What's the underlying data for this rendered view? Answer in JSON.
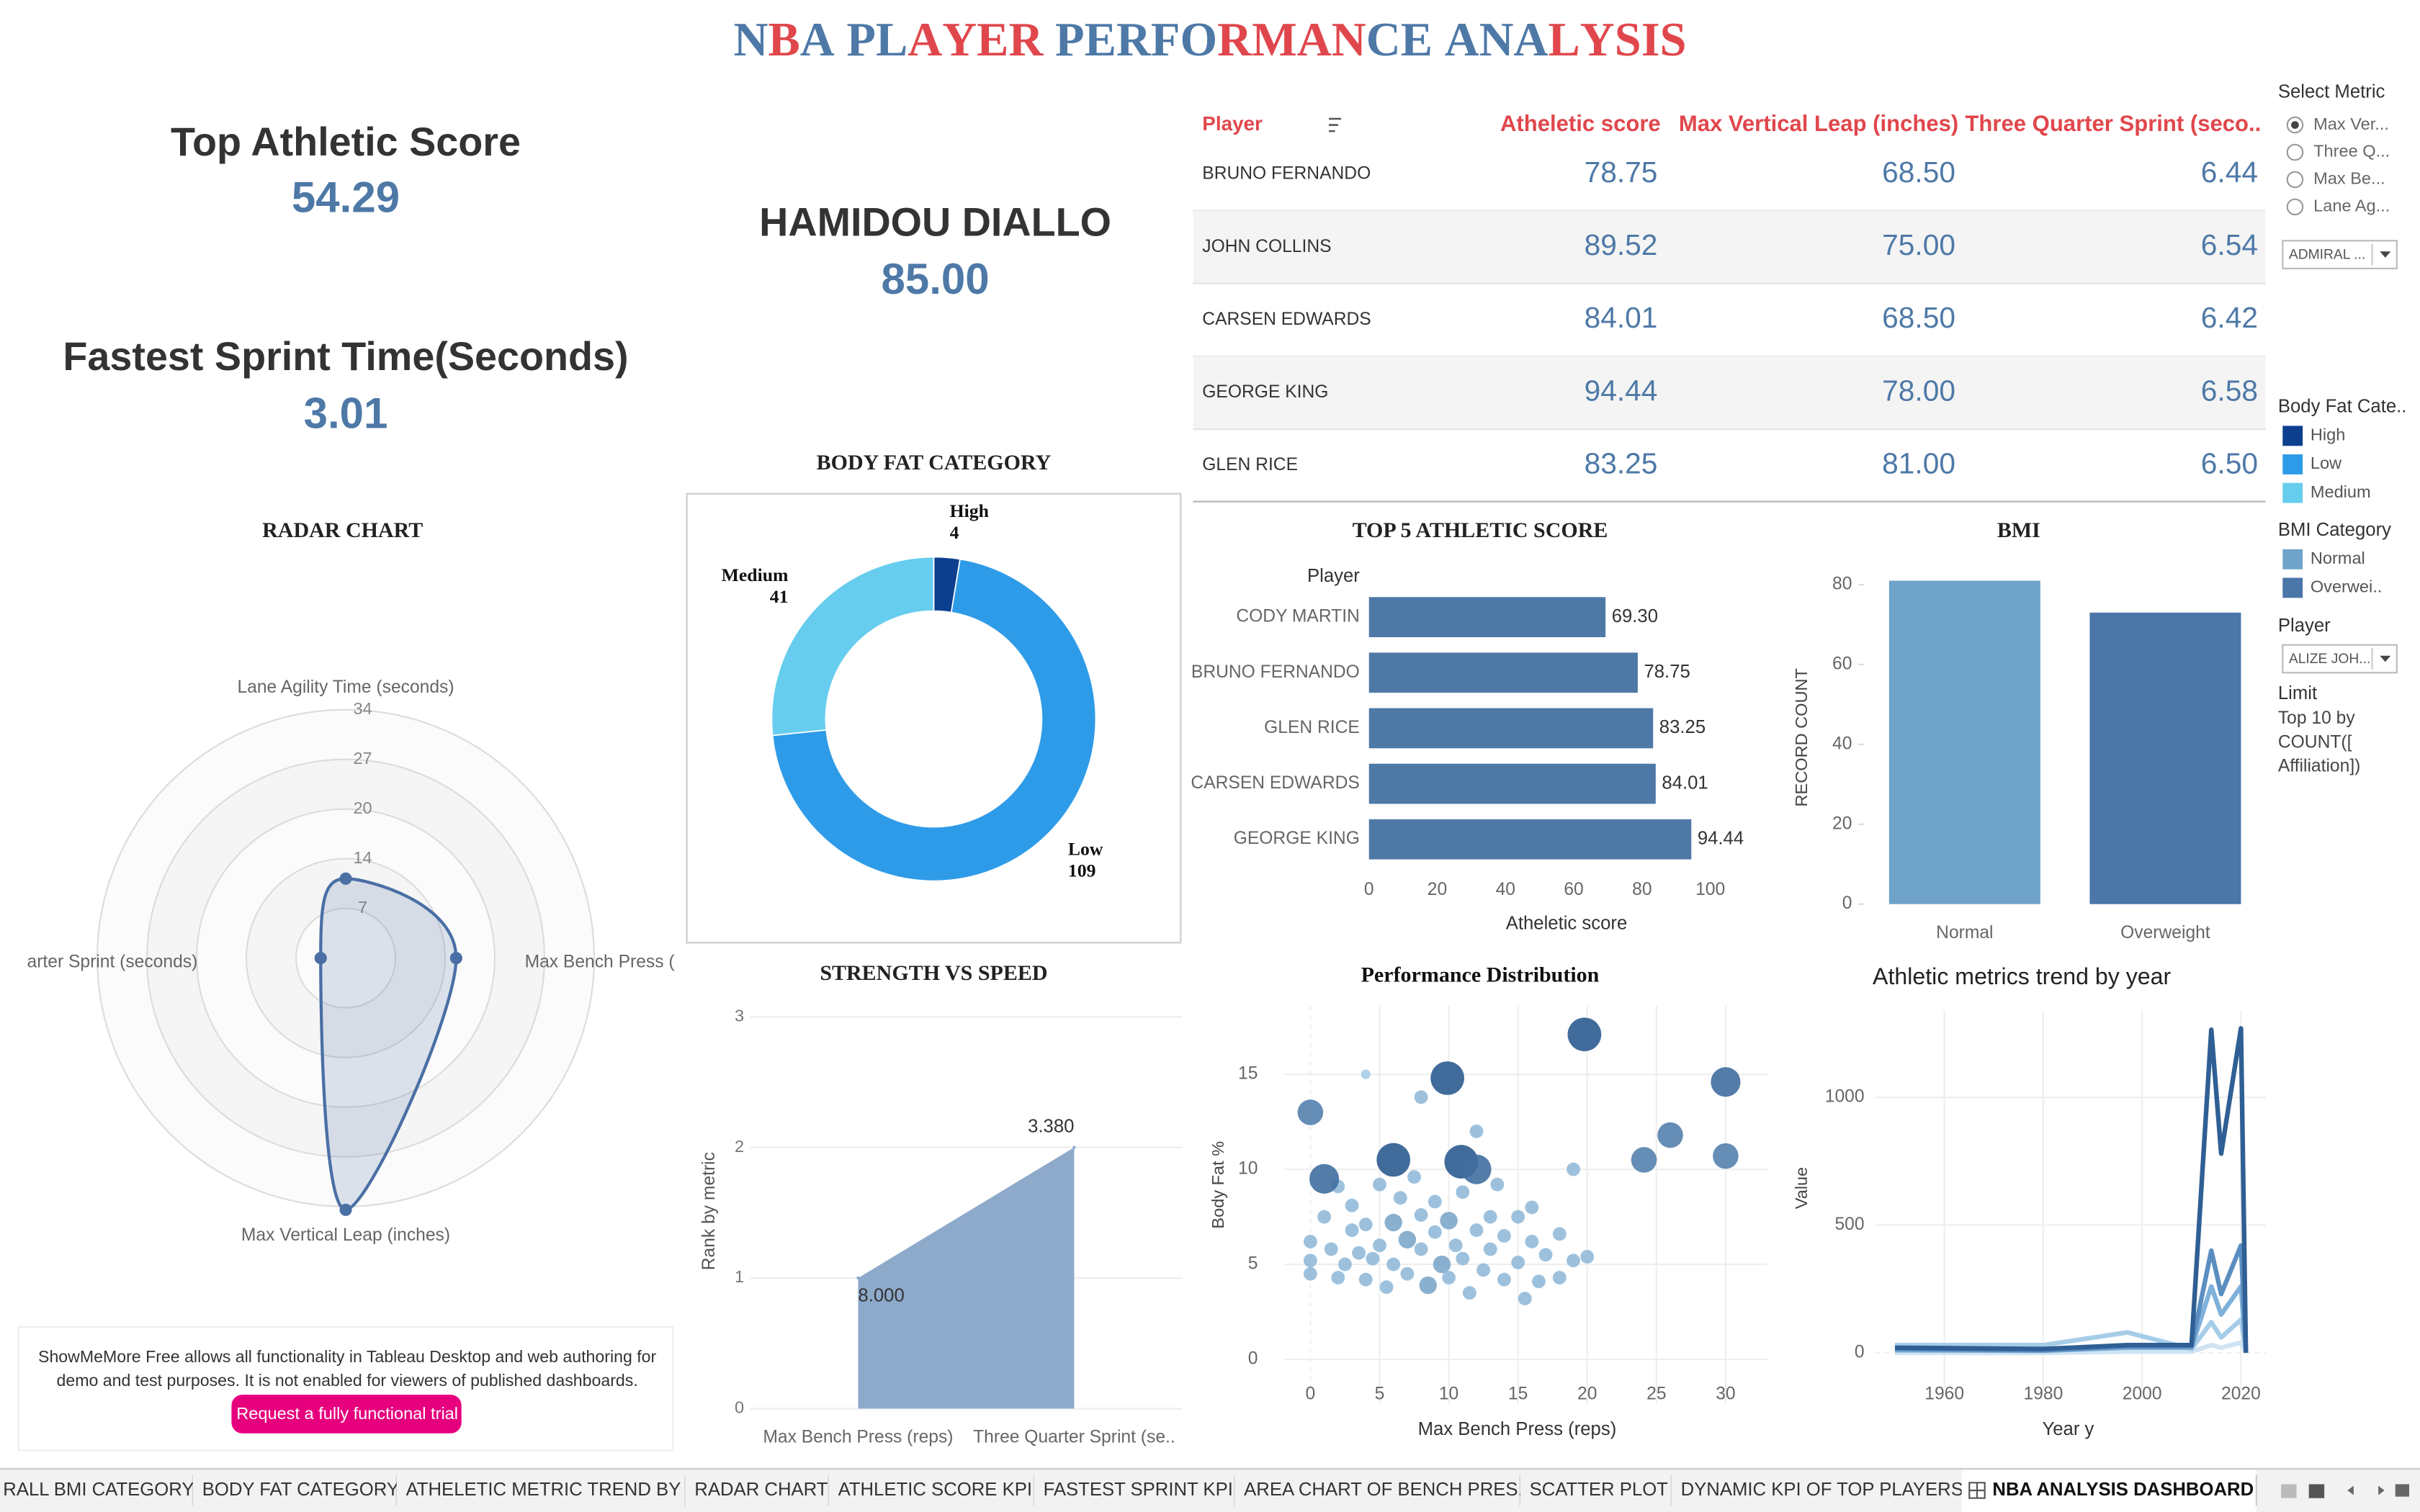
{
  "header": {
    "title": "NBA PLAYER PERFORMANCE ANALYSIS"
  },
  "kpis": [
    {
      "label": "Top Athletic Score",
      "value": "54.29"
    },
    {
      "label": "Fastest Sprint Time(Seconds)",
      "value": "3.01"
    },
    {
      "label": "HAMIDOU DIALLO",
      "value": "85.00"
    }
  ],
  "table": {
    "columns": [
      "Player",
      "Atheletic score",
      "Max Vertical Leap (inches)",
      "Three Quarter Sprint (seco.."
    ],
    "rows": [
      [
        "BRUNO FERNANDO",
        "78.75",
        "68.50",
        "6.44"
      ],
      [
        "JOHN COLLINS",
        "89.52",
        "75.00",
        "6.54"
      ],
      [
        "CARSEN EDWARDS",
        "84.01",
        "68.50",
        "6.42"
      ],
      [
        "GEORGE KING",
        "94.44",
        "78.00",
        "6.58"
      ],
      [
        "GLEN RICE",
        "83.25",
        "81.00",
        "6.50"
      ]
    ]
  },
  "filters": {
    "select_metric": {
      "label": "Select Metric",
      "options": [
        "Max Ver...",
        "Three Q...",
        "Max Be...",
        "Lane Ag..."
      ],
      "selected": 0,
      "dropdown": "ADMIRAL ..."
    },
    "body_fat_legend": {
      "title": "Body Fat Cate..",
      "items": [
        {
          "name": "High",
          "color": "#0d3f8f"
        },
        {
          "name": "Low",
          "color": "#2e9be8"
        },
        {
          "name": "Medium",
          "color": "#66cdee"
        }
      ]
    },
    "bmi_legend": {
      "title": "BMI Category",
      "items": [
        {
          "name": "Normal",
          "color": "#6fa3c9"
        },
        {
          "name": "Overwei..",
          "color": "#4a76a8"
        }
      ]
    },
    "player": {
      "label": "Player",
      "dropdown": "ALIZE JOH..."
    },
    "limit": {
      "label": "Limit",
      "lines": [
        "Top 10 by",
        "COUNT([",
        "Affiliation])"
      ]
    }
  },
  "chart_data": [
    {
      "type": "radar",
      "title": "RADAR CHART",
      "categories": [
        "Lane Agility Time  (seconds)",
        "Max Bench Press (",
        "Max Vertical Leap (inches)",
        "arter Sprint (seconds)"
      ],
      "values": [
        10.8,
        15.0,
        34.2,
        3.4
      ],
      "color": "#4a6fa5",
      "rlim": [
        0,
        33.75
      ],
      "rticks": [
        {
          "value": 6.75,
          "label": "7"
        },
        {
          "value": 13.5,
          "label": "14"
        },
        {
          "value": 20.25,
          "label": "20"
        },
        27,
        {
          "value": 33.75,
          "label": "34"
        }
      ]
    },
    {
      "type": "donut",
      "title": "BODY FAT CATEGORY",
      "categories": [
        "High",
        "Low",
        "Medium"
      ],
      "values": [
        4,
        109,
        41
      ],
      "colors": [
        "#0d3f8f",
        "#2e9be8",
        "#66cdee"
      ]
    },
    {
      "type": "area",
      "title": "STRENGTH VS SPEED",
      "y_label": "Rank by metric",
      "categories": [
        "Max Bench Press (reps)",
        "Three Quarter Sprint (se.."
      ],
      "values": [
        1,
        2
      ],
      "annotations": [
        "8.000",
        "3.380"
      ],
      "color": "#8eaacb",
      "ylim": [
        0,
        3
      ],
      "yticks": [
        0,
        1,
        2,
        3
      ],
      "grid": true
    },
    {
      "type": "hbar",
      "title": "TOP 5 ATHLETIC SCORE",
      "y_label": "Player",
      "x_label": "Atheletic score",
      "categories": [
        "CODY MARTIN",
        "BRUNO FERNANDO",
        "GLEN RICE",
        "CARSEN EDWARDS",
        "GEORGE KING"
      ],
      "values": [
        69.3,
        78.75,
        83.25,
        84.01,
        94.44
      ],
      "value_labels": [
        "69.30",
        "78.75",
        "83.25",
        "84.01",
        "94.44"
      ],
      "color": "#4e79a7",
      "xlim": [
        0,
        104
      ],
      "xticks": [
        0,
        20,
        40,
        60,
        80,
        100
      ]
    },
    {
      "type": "bar",
      "title": "BMI",
      "y_label": "RECORD COUNT",
      "categories": [
        "Normal",
        "Overweight"
      ],
      "values": [
        81,
        73
      ],
      "colors": [
        "#6fa3c9",
        "#4a76a8"
      ],
      "ylim": [
        0,
        85
      ],
      "yticks": [
        0,
        20,
        40,
        60,
        80
      ]
    },
    {
      "type": "scatter",
      "title": "Performance Distribution",
      "x_label": "Max Bench Press (reps)",
      "y_label": "Body Fat %",
      "x": [
        0,
        0,
        0,
        1,
        1.5,
        2,
        2,
        2.5,
        3,
        3,
        3.5,
        4,
        4,
        4,
        4.5,
        5,
        5,
        5.5,
        6,
        6,
        6.5,
        7,
        7,
        7.5,
        8,
        8,
        8,
        8.5,
        9,
        9,
        9.5,
        10,
        10,
        10.5,
        11,
        11,
        11.5,
        12,
        12,
        12.5,
        13,
        13,
        13.5,
        14,
        14,
        15,
        15,
        15.5,
        16,
        16,
        16.5,
        17,
        18,
        18,
        19,
        19,
        20,
        0,
        1,
        6,
        9.9,
        10.9,
        12,
        19.8,
        24.1,
        26,
        30,
        30
      ],
      "y": [
        6.2,
        5.2,
        4.5,
        7.5,
        5.8,
        4.3,
        9.1,
        5,
        6.8,
        8.1,
        5.6,
        15,
        4.2,
        7.1,
        5.3,
        9.2,
        6,
        3.8,
        7.2,
        5,
        8.5,
        4.5,
        6.3,
        9.6,
        13.8,
        5.8,
        7.6,
        3.9,
        6.7,
        8.3,
        5,
        7.3,
        4.3,
        6,
        8.8,
        5.3,
        3.5,
        6.8,
        12,
        4.7,
        7.5,
        5.8,
        9.2,
        4.2,
        6.5,
        7.5,
        5.1,
        3.2,
        6.2,
        8,
        4.1,
        5.5,
        4.3,
        6.6,
        5.2,
        10,
        5.4,
        13,
        9.5,
        10.5,
        14.8,
        10.4,
        10,
        17.1,
        10.5,
        11.8,
        14.6,
        10.7
      ],
      "sizes": [
        3,
        3,
        3,
        3,
        3,
        3,
        3,
        3,
        3,
        3,
        3,
        2,
        3,
        3,
        3,
        3,
        3,
        3,
        4,
        3,
        3,
        3,
        4,
        3,
        3,
        3,
        3,
        4,
        3,
        3,
        4,
        4,
        3,
        3,
        3,
        3,
        3,
        3,
        3,
        3,
        3,
        3,
        3,
        3,
        3,
        3,
        3,
        3,
        3,
        3,
        3,
        3,
        3,
        3,
        3,
        3,
        3,
        6,
        7,
        8,
        8,
        8,
        7,
        8,
        6,
        6,
        7,
        6
      ],
      "colors": [
        "#a6cde8",
        "#2c5b8f"
      ],
      "xlim": [
        -1.9,
        33
      ],
      "ylim": [
        -2.35,
        18.6
      ],
      "xticks": [
        0,
        5,
        10,
        15,
        20,
        25,
        30
      ],
      "yticks": [
        0,
        5,
        10,
        15
      ],
      "grid": true
    },
    {
      "type": "line",
      "title": "Athletic metrics trend by year",
      "x_label": "Year y",
      "y_label": "Value",
      "x": [
        1950,
        1980,
        1997,
        2010,
        2014,
        2016,
        2020,
        2021
      ],
      "series": [
        {
          "color": "#cfe3f2",
          "values": [
            0,
            0,
            5,
            5,
            30,
            20,
            40,
            0
          ]
        },
        {
          "color": "#a6cde8",
          "values": [
            30,
            30,
            80,
            15,
            120,
            60,
            130,
            10
          ]
        },
        {
          "color": "#7fb1da",
          "values": [
            10,
            8,
            20,
            20,
            260,
            150,
            260,
            5
          ]
        },
        {
          "color": "#5b8ec0",
          "values": [
            15,
            10,
            25,
            25,
            400,
            230,
            420,
            10
          ]
        },
        {
          "color": "#2f5f94",
          "values": [
            20,
            15,
            30,
            30,
            1265,
            780,
            1270,
            0
          ]
        }
      ],
      "xlim": [
        1946,
        2025
      ],
      "ylim": [
        -140,
        1340
      ],
      "xticks": [
        1960,
        1980,
        2000,
        2020
      ],
      "yticks": [
        0,
        500,
        1000
      ],
      "grid": true
    }
  ],
  "notice": {
    "lines": [
      "ShowMeMore Free allows all functionality in Tableau Desktop and web authoring for",
      "demo and test purposes. It is not enabled for viewers of published dashboards."
    ],
    "button": "Request a fully functional trial"
  },
  "tabs": {
    "items": [
      "RALL BMI CATEGORY",
      "BODY FAT CATEGORY",
      "ATHELETIC METRIC TREND BY ...",
      "RADAR CHART",
      "ATHLETIC SCORE KPI",
      "FASTEST SPRINT KPI",
      "AREA CHART OF BENCH PRES...",
      "SCATTER PLOT",
      "DYNAMIC KPI OF TOP PLAYERS",
      "NBA ANALYSIS DASHBOARD"
    ],
    "active": 9
  }
}
